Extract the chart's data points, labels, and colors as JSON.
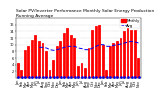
{
  "title": "Solar PV/Inverter Performance Monthly Solar Energy Production Running Average",
  "bar_values": [
    4.5,
    2.5,
    8.5,
    9.5,
    11.5,
    13.0,
    11.0,
    10.5,
    8.0,
    2.5,
    5.5,
    9.5,
    11.0,
    13.5,
    15.0,
    13.0,
    12.0,
    3.5,
    4.5,
    3.0,
    9.0,
    14.5,
    15.5,
    16.0,
    10.0,
    2.5,
    9.5,
    10.5,
    11.0,
    12.0,
    14.0,
    15.0,
    14.5,
    14.5,
    6.0
  ],
  "running_avg": [
    null,
    null,
    null,
    null,
    null,
    null,
    9.2,
    9.2,
    9.0,
    8.5,
    8.3,
    8.5,
    8.8,
    9.2,
    9.5,
    9.5,
    9.5,
    9.0,
    8.8,
    8.5,
    8.5,
    9.0,
    9.5,
    10.0,
    10.0,
    9.5,
    9.5,
    9.8,
    10.0,
    10.2,
    10.5,
    10.8,
    11.0,
    10.8,
    10.5
  ],
  "bar_color": "#FF0000",
  "avg_color": "#0000EE",
  "ylim": [
    0,
    18
  ],
  "ytick_vals": [
    2,
    4,
    6,
    8,
    10,
    12,
    14,
    16
  ],
  "bg_color": "#FFFFFF",
  "grid_color": "#AAAAAA",
  "title_fontsize": 3.2,
  "tick_fontsize": 2.5,
  "legend_fontsize": 2.8,
  "x_labels": [
    "Jan",
    "Feb",
    "Mar",
    "Apr",
    "May",
    "Jun",
    "Jul",
    "Aug",
    "Sep",
    "Oct",
    "Nov",
    "Dec",
    "Jan",
    "Feb",
    "Mar",
    "Apr",
    "May",
    "Jun",
    "Jul",
    "Aug",
    "Sep",
    "Oct",
    "Nov",
    "Dec",
    "Jan",
    "Feb",
    "Mar",
    "Apr",
    "May",
    "Jun",
    "Jul",
    "Aug",
    "Sep",
    "Oct",
    "Nov"
  ]
}
